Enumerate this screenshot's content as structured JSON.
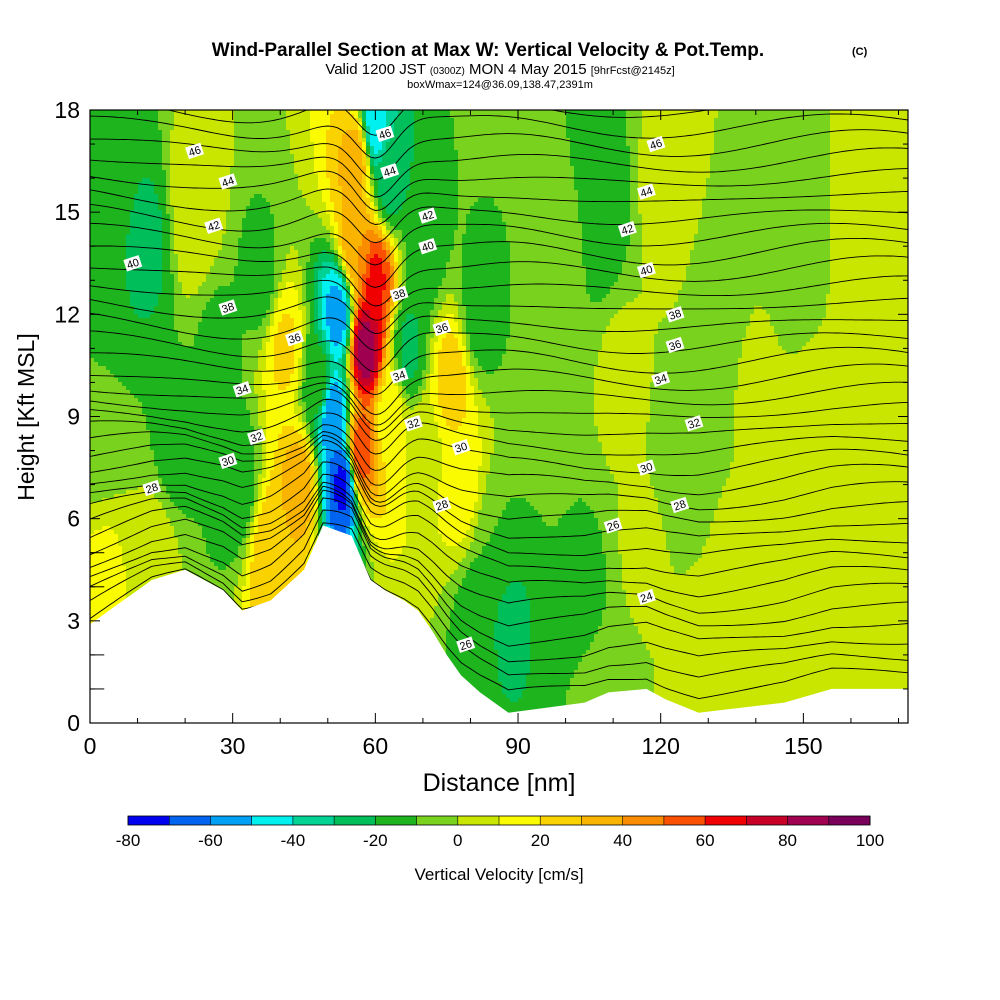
{
  "chart_data": {
    "type": "heatmap",
    "title": "Wind-Parallel Section at Max W: Vertical Velocity & Pot.Temp.",
    "title_badge": "(C)",
    "subtitle_a": "Valid 1200 JST",
    "subtitle_b": "(0300Z)",
    "subtitle_c": "MON 4 May 2015",
    "subtitle_d": "[9hrFcst@2145z]",
    "subtitle2": "boxWmax=124@36.09,138.47,2391m",
    "xlabel": "Distance [nm]",
    "ylabel": "Height [Kft MSL]",
    "xlim": [
      0,
      172
    ],
    "ylim": [
      0,
      18
    ],
    "x_ticks": [
      0,
      30,
      60,
      90,
      120,
      150
    ],
    "y_ticks": [
      0,
      3,
      6,
      9,
      12,
      15,
      18
    ],
    "colorbar": {
      "label": "Vertical Velocity [cm/s]",
      "ticks": [
        -80,
        -60,
        -40,
        -20,
        0,
        20,
        40,
        60,
        80,
        100
      ],
      "levels": [
        -80,
        -70,
        -60,
        -50,
        -40,
        -30,
        -20,
        -10,
        0,
        10,
        20,
        30,
        40,
        50,
        60,
        70,
        80,
        90,
        100
      ],
      "colors": [
        "#0000f0",
        "#0064f0",
        "#00a0f5",
        "#00f0f0",
        "#00d296",
        "#00be5a",
        "#1eb41e",
        "#78d21e",
        "#c8e600",
        "#fafa00",
        "#fad200",
        "#fab400",
        "#fa8c00",
        "#fa5000",
        "#f00000",
        "#c80028",
        "#a00050",
        "#78005a",
        "#500078"
      ]
    },
    "velocity_field": [
      {
        "x": 4,
        "y": 16,
        "w": -15
      },
      {
        "x": 12,
        "y": 14,
        "w": -22
      },
      {
        "x": 2,
        "y": 9,
        "w": -10
      },
      {
        "x": 18,
        "y": 8,
        "w": -14
      },
      {
        "x": 22,
        "y": 15,
        "w": 10
      },
      {
        "x": 27,
        "y": 11,
        "w": -12
      },
      {
        "x": 31,
        "y": 7,
        "w": -18
      },
      {
        "x": 36,
        "y": 13,
        "w": -13
      },
      {
        "x": 3,
        "y": 4,
        "w": 12
      },
      {
        "x": 14,
        "y": 5,
        "w": 4
      },
      {
        "x": 41,
        "y": 11,
        "w": 22
      },
      {
        "x": 44,
        "y": 7,
        "w": 35
      },
      {
        "x": 38,
        "y": 5,
        "w": 28
      },
      {
        "x": 48,
        "y": 10,
        "w": -15
      },
      {
        "x": 51,
        "y": 9,
        "w": -60
      },
      {
        "x": 52,
        "y": 12,
        "w": -55
      },
      {
        "x": 53,
        "y": 7,
        "w": -72
      },
      {
        "x": 56,
        "y": 14,
        "w": 40
      },
      {
        "x": 58,
        "y": 11,
        "w": 85
      },
      {
        "x": 60,
        "y": 13,
        "w": 62
      },
      {
        "x": 57,
        "y": 8,
        "w": 55
      },
      {
        "x": 56,
        "y": 16.5,
        "w": 35
      },
      {
        "x": 60,
        "y": 17.5,
        "w": -45
      },
      {
        "x": 63,
        "y": 16,
        "w": -25
      },
      {
        "x": 63,
        "y": 9,
        "w": 15
      },
      {
        "x": 67,
        "y": 11,
        "w": -22
      },
      {
        "x": 70,
        "y": 14,
        "w": -18
      },
      {
        "x": 71,
        "y": 8,
        "w": 8
      },
      {
        "x": 76,
        "y": 10,
        "w": 25
      },
      {
        "x": 78,
        "y": 7,
        "w": 15
      },
      {
        "x": 82,
        "y": 12,
        "w": -15
      },
      {
        "x": 85,
        "y": 5,
        "w": -10
      },
      {
        "x": 88,
        "y": 3,
        "w": -22
      },
      {
        "x": 82,
        "y": 3,
        "w": -18
      },
      {
        "x": 96,
        "y": 10,
        "w": -4
      },
      {
        "x": 100,
        "y": 14,
        "w": -6
      },
      {
        "x": 107,
        "y": 15,
        "w": -18
      },
      {
        "x": 104,
        "y": 4,
        "w": -12
      },
      {
        "x": 112,
        "y": 10,
        "w": 3
      },
      {
        "x": 116,
        "y": 5,
        "w": 2
      },
      {
        "x": 122,
        "y": 15.5,
        "w": 6
      },
      {
        "x": 124,
        "y": 8,
        "w": -5
      },
      {
        "x": 132,
        "y": 12,
        "w": -10
      },
      {
        "x": 136,
        "y": 4,
        "w": 2
      },
      {
        "x": 140,
        "y": 10,
        "w": 2
      },
      {
        "x": 148,
        "y": 14,
        "w": -6
      },
      {
        "x": 152,
        "y": 8,
        "w": 6
      },
      {
        "x": 158,
        "y": 4,
        "w": 3
      },
      {
        "x": 164,
        "y": 14,
        "w": 8
      },
      {
        "x": 168,
        "y": 9,
        "w": 4
      },
      {
        "x": 108,
        "y": 1,
        "w": -8
      },
      {
        "x": 128,
        "y": 1,
        "w": 4
      }
    ],
    "terrain": [
      {
        "x": 0,
        "h": 2.9
      },
      {
        "x": 3,
        "h": 3.2
      },
      {
        "x": 6,
        "h": 3.5
      },
      {
        "x": 10,
        "h": 3.9
      },
      {
        "x": 13,
        "h": 4.2
      },
      {
        "x": 20,
        "h": 4.5
      },
      {
        "x": 28,
        "h": 3.9
      },
      {
        "x": 32,
        "h": 3.3
      },
      {
        "x": 38,
        "h": 3.6
      },
      {
        "x": 45,
        "h": 4.5
      },
      {
        "x": 49,
        "h": 5.8
      },
      {
        "x": 55,
        "h": 5.5
      },
      {
        "x": 59,
        "h": 4.2
      },
      {
        "x": 62,
        "h": 3.9
      },
      {
        "x": 66,
        "h": 3.6
      },
      {
        "x": 69,
        "h": 3.3
      },
      {
        "x": 72,
        "h": 2.7
      },
      {
        "x": 75,
        "h": 2.0
      },
      {
        "x": 78,
        "h": 1.4
      },
      {
        "x": 82,
        "h": 0.9
      },
      {
        "x": 88,
        "h": 0.3
      },
      {
        "x": 104,
        "h": 0.6
      },
      {
        "x": 109,
        "h": 0.9
      },
      {
        "x": 117,
        "h": 1.0
      },
      {
        "x": 121,
        "h": 0.7
      },
      {
        "x": 128,
        "h": 0.3
      },
      {
        "x": 146,
        "h": 0.6
      },
      {
        "x": 156,
        "h": 1.0
      },
      {
        "x": 172,
        "h": 1.0
      }
    ],
    "isentropes": {
      "count": 34,
      "labels": [
        {
          "text": "46",
          "x": 22,
          "y": 16.8
        },
        {
          "text": "44",
          "x": 29,
          "y": 15.9
        },
        {
          "text": "42",
          "x": 26,
          "y": 14.6
        },
        {
          "text": "40",
          "x": 9,
          "y": 13.5
        },
        {
          "text": "38",
          "x": 29,
          "y": 12.2
        },
        {
          "text": "36",
          "x": 43,
          "y": 11.3
        },
        {
          "text": "34",
          "x": 32,
          "y": 9.8
        },
        {
          "text": "32",
          "x": 35,
          "y": 8.4
        },
        {
          "text": "30",
          "x": 29,
          "y": 7.7
        },
        {
          "text": "28",
          "x": 13,
          "y": 6.9
        },
        {
          "text": "46",
          "x": 62,
          "y": 17.3
        },
        {
          "text": "44",
          "x": 63,
          "y": 16.2
        },
        {
          "text": "42",
          "x": 71,
          "y": 14.9
        },
        {
          "text": "40",
          "x": 71,
          "y": 14.0
        },
        {
          "text": "38",
          "x": 65,
          "y": 12.6
        },
        {
          "text": "36",
          "x": 74,
          "y": 11.6
        },
        {
          "text": "34",
          "x": 65,
          "y": 10.2
        },
        {
          "text": "32",
          "x": 68,
          "y": 8.8
        },
        {
          "text": "30",
          "x": 78,
          "y": 8.1
        },
        {
          "text": "28",
          "x": 74,
          "y": 6.4
        },
        {
          "text": "26",
          "x": 79,
          "y": 2.3
        },
        {
          "text": "46",
          "x": 119,
          "y": 17.0
        },
        {
          "text": "44",
          "x": 117,
          "y": 15.6
        },
        {
          "text": "42",
          "x": 113,
          "y": 14.5
        },
        {
          "text": "40",
          "x": 117,
          "y": 13.3
        },
        {
          "text": "38",
          "x": 123,
          "y": 12.0
        },
        {
          "text": "36",
          "x": 123,
          "y": 11.1
        },
        {
          "text": "34",
          "x": 120,
          "y": 10.1
        },
        {
          "text": "32",
          "x": 127,
          "y": 8.8
        },
        {
          "text": "30",
          "x": 117,
          "y": 7.5
        },
        {
          "text": "28",
          "x": 124,
          "y": 6.4
        },
        {
          "text": "26",
          "x": 110,
          "y": 5.8
        },
        {
          "text": "24",
          "x": 117,
          "y": 3.7
        }
      ]
    }
  }
}
